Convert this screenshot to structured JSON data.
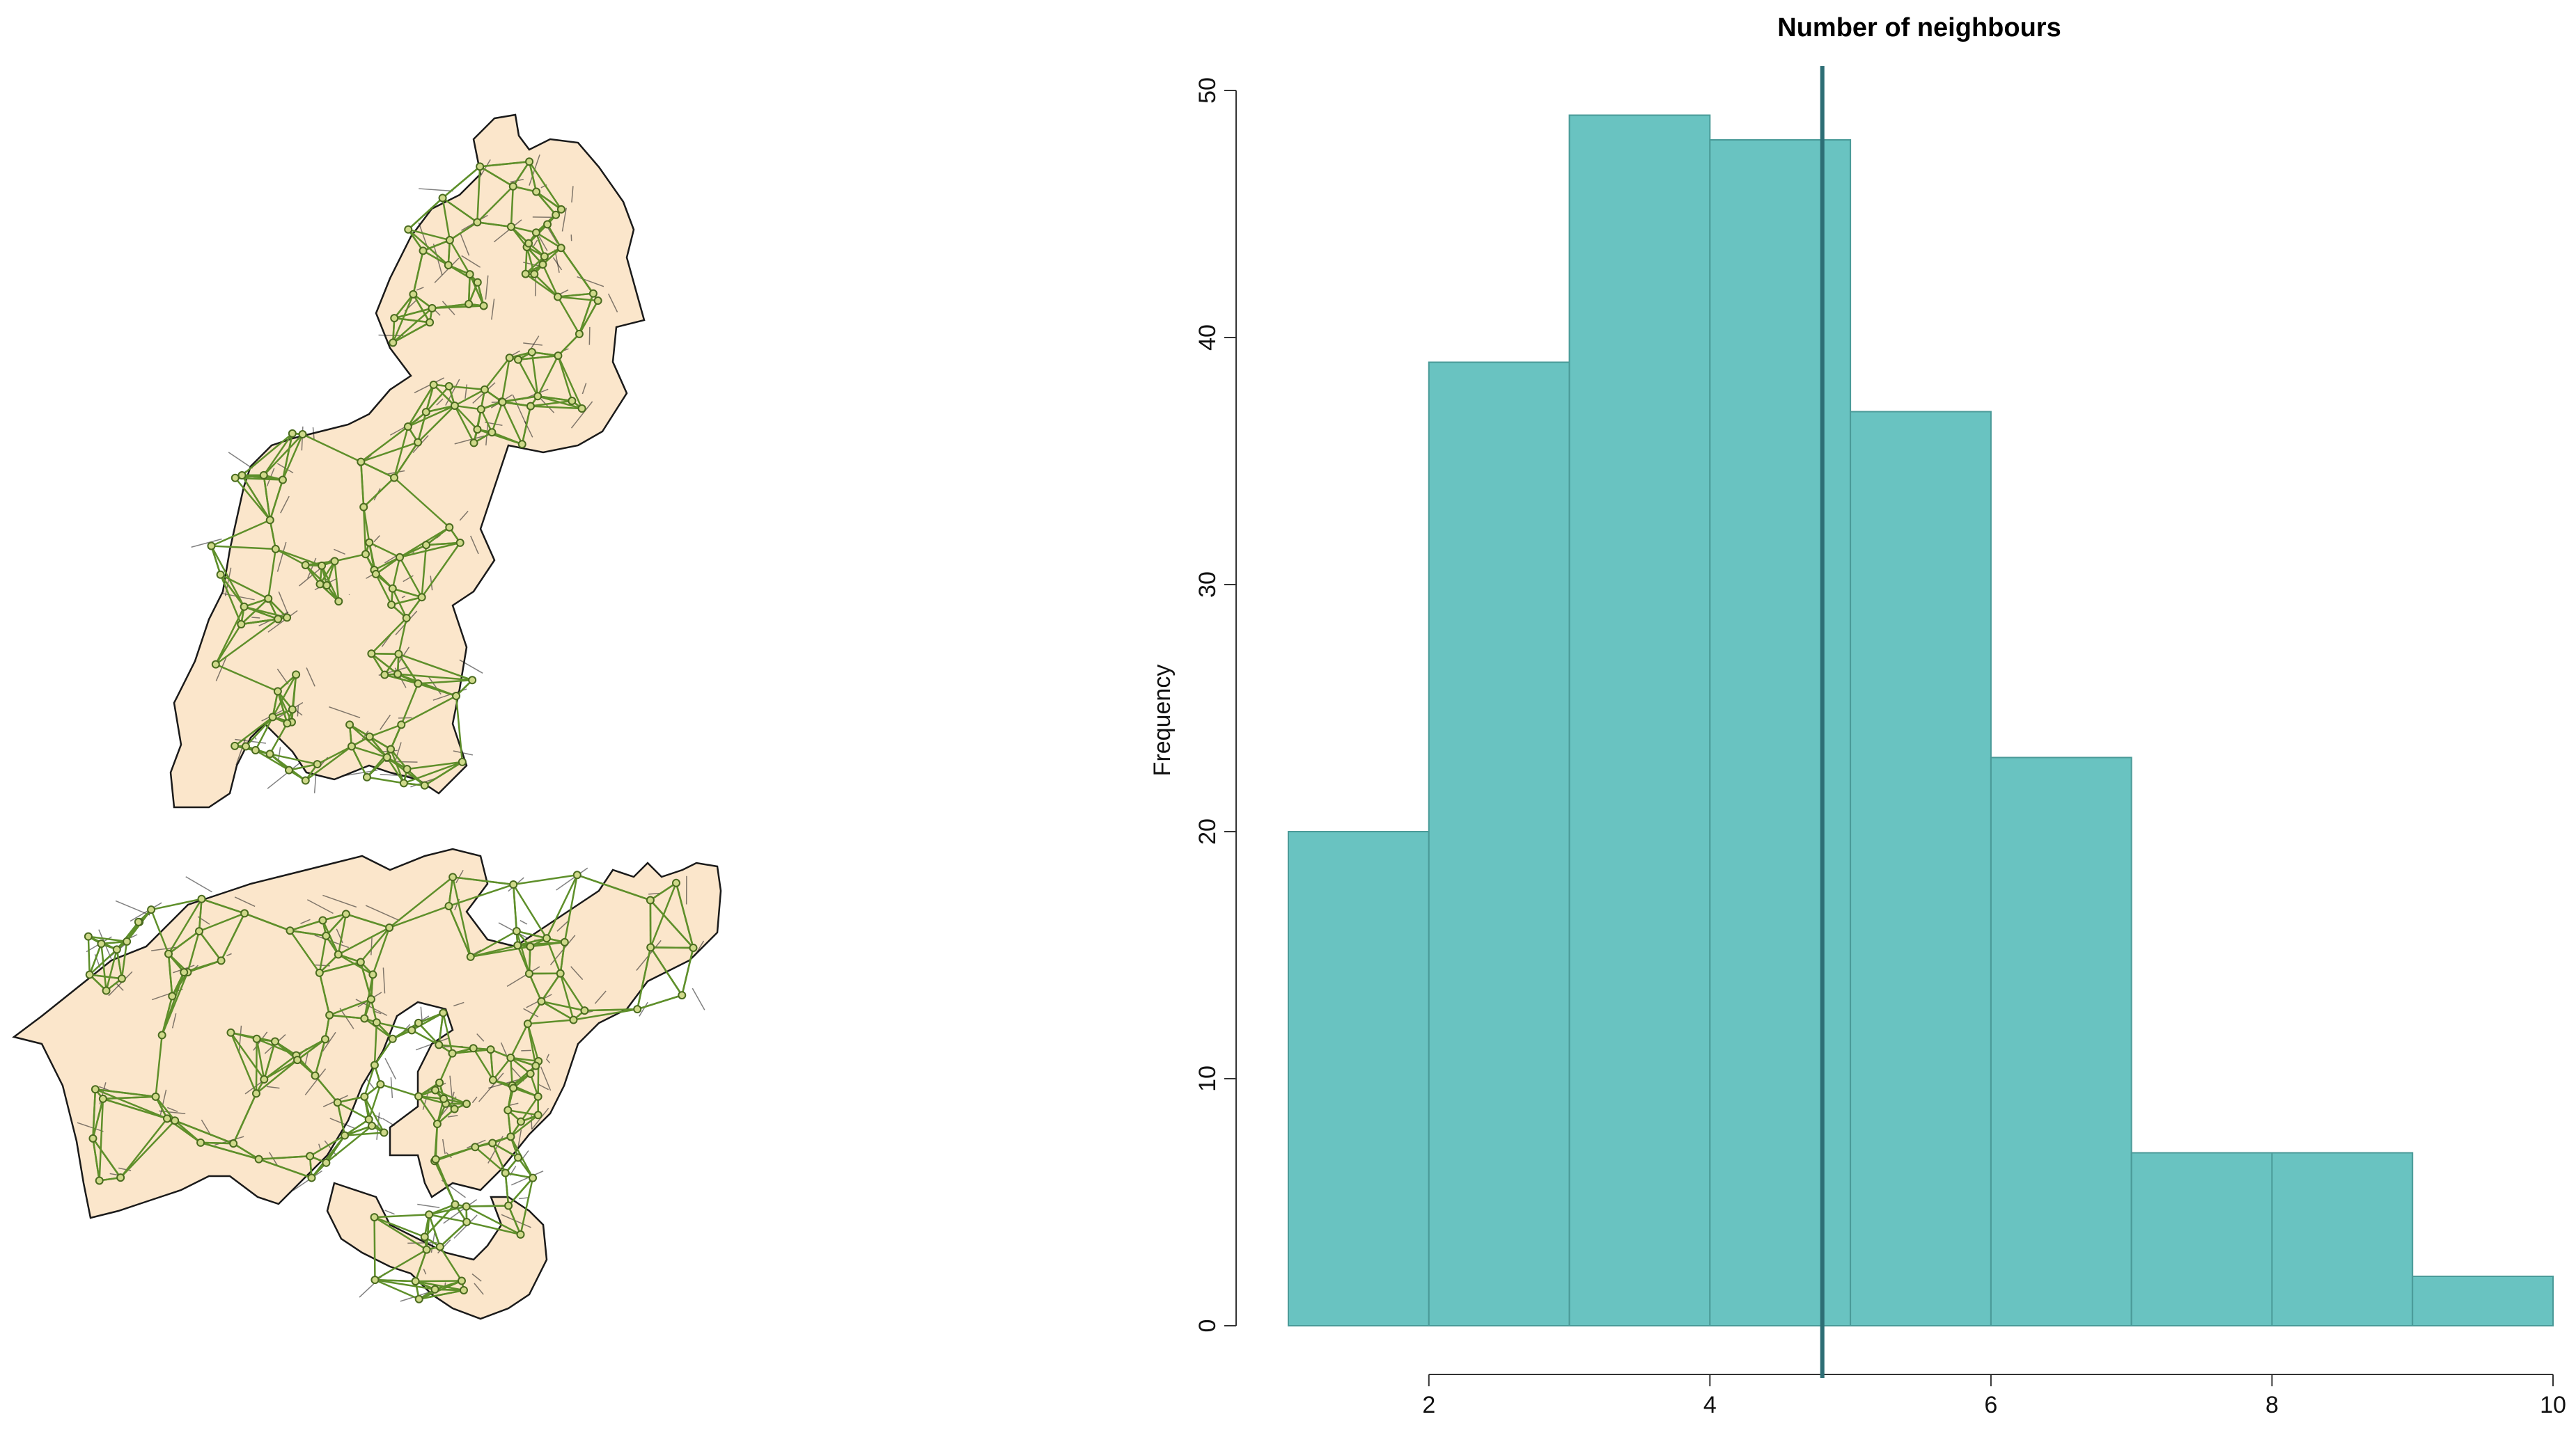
{
  "chart_data": [
    {
      "type": "map",
      "title": "",
      "region_fill": "#fbe6cb",
      "boundary_color": "#1a1a1a",
      "link_color": "#5e8f2a",
      "node_color": "#4a6b1f"
    },
    {
      "type": "bar",
      "title": "Number of neighbours",
      "xlabel": "",
      "ylabel": "Frequency",
      "bins": [
        [
          1,
          2
        ],
        [
          2,
          3
        ],
        [
          3,
          4
        ],
        [
          4,
          5
        ],
        [
          5,
          6
        ],
        [
          6,
          7
        ],
        [
          7,
          8
        ],
        [
          8,
          9
        ],
        [
          9,
          10
        ]
      ],
      "values": [
        20,
        39,
        49,
        48,
        37,
        23,
        7,
        7,
        2
      ],
      "xlim": [
        1,
        10
      ],
      "ylim": [
        0,
        50
      ],
      "xticks": [
        2,
        4,
        6,
        8,
        10
      ],
      "yticks": [
        0,
        10,
        20,
        30,
        40,
        50
      ],
      "mean_line": 4.8,
      "bar_color": "#69c3c1",
      "bar_edge_color": "#4a9a98",
      "line_color": "#2d6e75",
      "grid": false
    }
  ]
}
